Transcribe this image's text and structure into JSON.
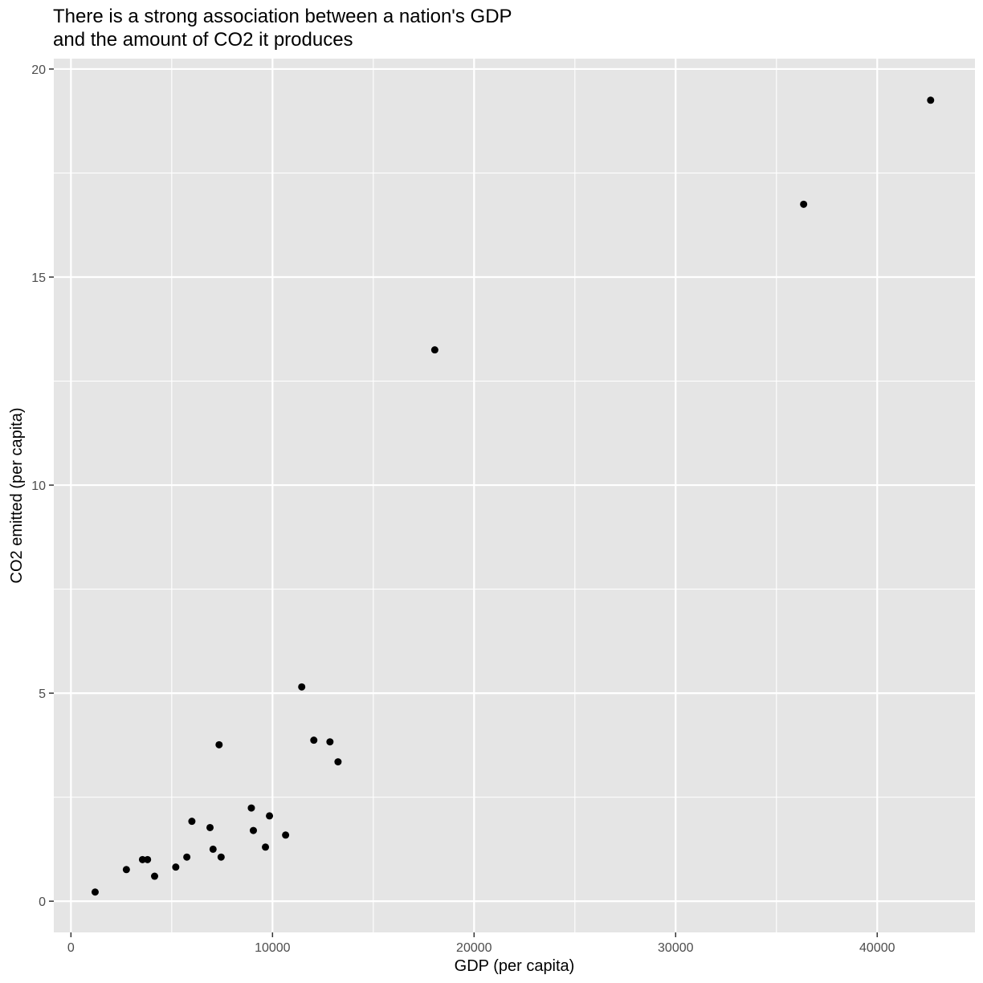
{
  "chart_data": {
    "type": "scatter",
    "title": "There is a strong association between a nation's GDP\nand the amount of CO2 it produces",
    "xlabel": "GDP (per capita)",
    "ylabel": "CO2 emitted (per capita)",
    "xlim": [
      -850,
      44850
    ],
    "ylim": [
      -0.75,
      20.25
    ],
    "x_ticks": [
      0,
      10000,
      20000,
      30000,
      40000
    ],
    "x_tick_labels": [
      "0",
      "10000",
      "20000",
      "30000",
      "40000"
    ],
    "y_ticks": [
      0,
      5,
      10,
      15,
      20
    ],
    "y_tick_labels": [
      "0",
      "5",
      "10",
      "15",
      "20"
    ],
    "grid": true,
    "colors": {
      "panel": "#e5e5e5",
      "grid": "#ffffff",
      "point": "#000000",
      "tick_text": "#4d4d4d"
    },
    "series": [
      {
        "points": [
          {
            "x": 1200,
            "y": 0.22
          },
          {
            "x": 2750,
            "y": 0.76
          },
          {
            "x": 3550,
            "y": 1.0
          },
          {
            "x": 3800,
            "y": 1.0
          },
          {
            "x": 4150,
            "y": 0.6
          },
          {
            "x": 5200,
            "y": 0.82
          },
          {
            "x": 5750,
            "y": 1.06
          },
          {
            "x": 6000,
            "y": 1.92
          },
          {
            "x": 6900,
            "y": 1.77
          },
          {
            "x": 7050,
            "y": 1.25
          },
          {
            "x": 7350,
            "y": 3.76
          },
          {
            "x": 7450,
            "y": 1.06
          },
          {
            "x": 8950,
            "y": 2.24
          },
          {
            "x": 9050,
            "y": 1.7
          },
          {
            "x": 9650,
            "y": 1.3
          },
          {
            "x": 9850,
            "y": 2.05
          },
          {
            "x": 10650,
            "y": 1.59
          },
          {
            "x": 11450,
            "y": 5.15
          },
          {
            "x": 12050,
            "y": 3.87
          },
          {
            "x": 12850,
            "y": 3.83
          },
          {
            "x": 13250,
            "y": 3.35
          },
          {
            "x": 18050,
            "y": 13.25
          },
          {
            "x": 36350,
            "y": 16.75
          },
          {
            "x": 42650,
            "y": 19.25
          }
        ]
      }
    ]
  }
}
